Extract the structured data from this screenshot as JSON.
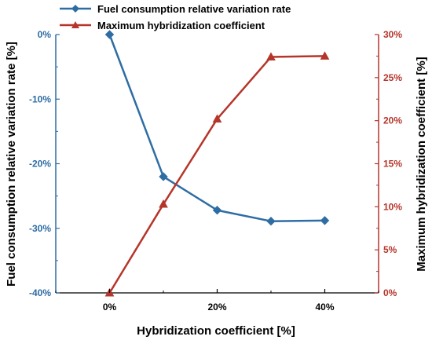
{
  "chart_data": {
    "type": "line",
    "xlabel": "Hybridization coefficient [%]",
    "ylabel_left": "Fuel consumption relative variation rate [%]",
    "ylabel_right": "Maximum hybridization coefficient [%]",
    "x_ticks": [
      "0%",
      "20%",
      "40%"
    ],
    "x_tick_values": [
      0,
      20,
      40
    ],
    "xlim": [
      -10,
      50
    ],
    "y_left_ticks": [
      "0%",
      "-10%",
      "-20%",
      "-30%",
      "-40%"
    ],
    "y_left_tick_values": [
      0,
      -10,
      -20,
      -30,
      -40
    ],
    "y_left_lim": [
      -40,
      0
    ],
    "y_right_ticks": [
      "0%",
      "5%",
      "10%",
      "15%",
      "20%",
      "25%",
      "30%"
    ],
    "y_right_tick_values": [
      0,
      5,
      10,
      15,
      20,
      25,
      30
    ],
    "y_right_lim": [
      0,
      30
    ],
    "legend_position": "top-left",
    "series": [
      {
        "name": "Fuel consumption relative variation rate",
        "axis": "left",
        "marker": "diamond",
        "color": "#2e6da4",
        "x": [
          0,
          10,
          20,
          30,
          40
        ],
        "y": [
          0,
          -22,
          -27.2,
          -28.9,
          -28.8
        ]
      },
      {
        "name": "Maximum hybridization coefficient",
        "axis": "right",
        "marker": "triangle",
        "color": "#b5352a",
        "x": [
          0,
          10,
          20,
          30,
          40
        ],
        "y": [
          0,
          10.3,
          20.2,
          27.4,
          27.5
        ]
      }
    ]
  }
}
